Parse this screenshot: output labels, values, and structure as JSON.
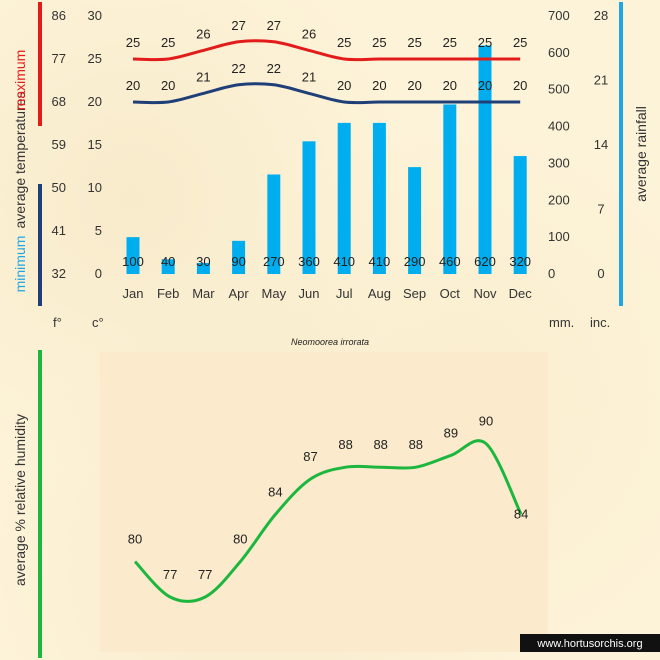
{
  "species_caption": "Neomoorea irrorata",
  "watermark": "www.hortusorchis.org",
  "colors": {
    "max_line": "#e21b1b",
    "min_line": "#1f3f78",
    "rain_bar": "#00aeef",
    "rain_axis": "#1ea7e6",
    "humidity_line": "#1db63f",
    "axis_text": "#333333",
    "panel_bg": "#fbeacb"
  },
  "labels": {
    "temp_left_min": "minimum",
    "temp_left_avg": "average  temperatures",
    "temp_left_max": "maximum",
    "rain_right": "average  rainfall",
    "humidity_left": "average %  relative humidity",
    "unit_f": "f°",
    "unit_c": "c°",
    "unit_mm": "mm.",
    "unit_inch": "inc."
  },
  "chart_data": [
    {
      "type": "bar",
      "title": "",
      "categories": [
        "Jan",
        "Feb",
        "Mar",
        "Apr",
        "May",
        "Jun",
        "Jul",
        "Aug",
        "Sep",
        "Oct",
        "Nov",
        "Dec"
      ],
      "series": [
        {
          "name": "rainfall",
          "values": [
            100,
            40,
            30,
            90,
            270,
            360,
            410,
            410,
            290,
            460,
            620,
            320
          ]
        }
      ],
      "ylim": [
        0,
        700
      ],
      "yticks": [
        0,
        100,
        200,
        300,
        400,
        500,
        600,
        700
      ],
      "ylabel": "average  rainfall",
      "secondary_yticks": [
        0,
        7,
        14,
        21,
        28
      ],
      "secondary_ylim": [
        0,
        28
      ],
      "grid": false
    },
    {
      "type": "line",
      "categories": [
        "Jan",
        "Feb",
        "Mar",
        "Apr",
        "May",
        "Jun",
        "Jul",
        "Aug",
        "Sep",
        "Oct",
        "Nov",
        "Dec"
      ],
      "series": [
        {
          "name": "maximum",
          "values": [
            25,
            25,
            26,
            27,
            27,
            26,
            25,
            25,
            25,
            25,
            25,
            25
          ]
        },
        {
          "name": "minimum",
          "values": [
            20,
            20,
            21,
            22,
            22,
            21,
            20,
            20,
            20,
            20,
            20,
            20
          ]
        }
      ],
      "ylim": [
        0,
        30
      ],
      "yticks": [
        0,
        5,
        10,
        15,
        20,
        25,
        30
      ],
      "fahrenheit_ticks": [
        32,
        41,
        50,
        59,
        68,
        77,
        86
      ],
      "ylabel": "average  temperatures",
      "grid": false
    },
    {
      "type": "line",
      "categories": [
        "Jan",
        "Feb",
        "Mar",
        "Apr",
        "May",
        "Jun",
        "Jul",
        "Aug",
        "Sep",
        "Oct",
        "Nov",
        "Dec"
      ],
      "series": [
        {
          "name": "relative humidity",
          "values": [
            80,
            77,
            77,
            80,
            84,
            87,
            88,
            88,
            88,
            89,
            90,
            84
          ]
        }
      ],
      "ylabel": "average %  relative humidity",
      "grid": false
    }
  ]
}
